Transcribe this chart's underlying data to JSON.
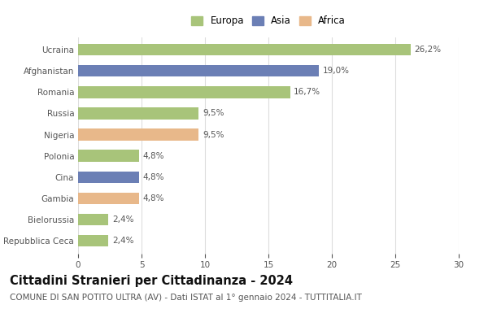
{
  "categories": [
    "Repubblica Ceca",
    "Bielorussia",
    "Gambia",
    "Cina",
    "Polonia",
    "Nigeria",
    "Russia",
    "Romania",
    "Afghanistan",
    "Ucraina"
  ],
  "values": [
    2.4,
    2.4,
    4.8,
    4.8,
    4.8,
    9.5,
    9.5,
    16.7,
    19.0,
    26.2
  ],
  "labels": [
    "2,4%",
    "2,4%",
    "4,8%",
    "4,8%",
    "4,8%",
    "9,5%",
    "9,5%",
    "16,7%",
    "19,0%",
    "26,2%"
  ],
  "continents": [
    "Europa",
    "Europa",
    "Africa",
    "Asia",
    "Europa",
    "Africa",
    "Europa",
    "Europa",
    "Asia",
    "Europa"
  ],
  "colors": {
    "Europa": "#a8c47a",
    "Asia": "#6b7fb5",
    "Africa": "#e8b88a"
  },
  "legend_labels": [
    "Europa",
    "Asia",
    "Africa"
  ],
  "title": "Cittadini Stranieri per Cittadinanza - 2024",
  "subtitle": "COMUNE DI SAN POTITO ULTRA (AV) - Dati ISTAT al 1° gennaio 2024 - TUTTITALIA.IT",
  "xlim": [
    0,
    30
  ],
  "xticks": [
    0,
    5,
    10,
    15,
    20,
    25,
    30
  ],
  "background_color": "#ffffff",
  "grid_color": "#dddddd",
  "bar_height": 0.55,
  "title_fontsize": 10.5,
  "subtitle_fontsize": 7.5,
  "label_fontsize": 7.5,
  "tick_fontsize": 7.5,
  "legend_fontsize": 8.5
}
